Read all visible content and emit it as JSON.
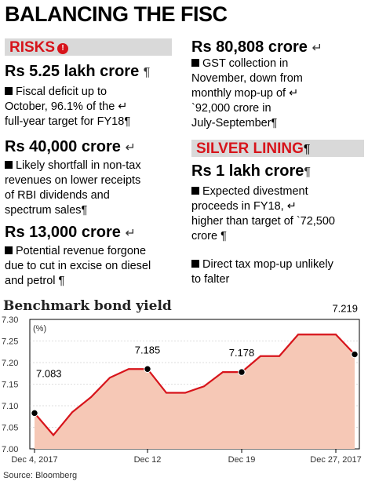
{
  "headline": "BALANCING THE FISC",
  "risks": {
    "label": "RISKS",
    "icon": "exclamation-badge-icon",
    "items": [
      {
        "amount": "Rs 5.25 lakh crore",
        "mark": "¶",
        "lines": [
          "Fiscal deficit up to",
          "October, 96.1% of the ↵",
          "full-year target for FY18¶"
        ]
      },
      {
        "amount": "Rs 40,000 crore",
        "mark": "↵",
        "lines": [
          "Likely shortfall in non-tax",
          "revenues on lower receipts",
          "of RBI dividends and",
          "spectrum sales¶"
        ]
      },
      {
        "amount": "Rs 13,000 crore",
        "mark": "↵",
        "lines": [
          "Potential revenue forgone",
          "due to cut in excise on diesel",
          "and petrol ¶"
        ]
      }
    ]
  },
  "right_top": {
    "amount": "Rs 80,808 crore",
    "mark": "↵",
    "lines": [
      "GST collection in",
      "November, down from",
      "monthly mop-up of ↵",
      "`92,000 crore in",
      "July-September¶"
    ]
  },
  "silver": {
    "label": "SILVER LINING",
    "mark": "¶",
    "items": [
      {
        "amount": "Rs 1 lakh crore",
        "mark": "¶",
        "lines": [
          "Expected divestment",
          "proceeds in FY18, ↵",
          "higher than target of `72,500",
          "crore ¶"
        ]
      },
      {
        "amount": "",
        "mark": "",
        "lines": [
          "Direct tax mop-up unlikely",
          "to falter"
        ]
      }
    ]
  },
  "chart_title": "Benchmark bond yield",
  "source": "Source: Bloomberg",
  "colors": {
    "accent": "#d7141b",
    "band": "#d9d9d9",
    "fill": "#f6c8b6"
  },
  "chart_data": {
    "type": "area",
    "title": "Benchmark bond yield",
    "ylabel": "(%)",
    "ylim": [
      7.0,
      7.3
    ],
    "yticks": [
      "7.30",
      "7.25",
      "7.20",
      "7.15",
      "7.10",
      "7.05",
      "7.00"
    ],
    "xticks": [
      "Dec 4, 2017",
      "Dec 12",
      "Dec 19",
      "Dec 27, 2017"
    ],
    "x": [
      "Dec 4, 2017",
      "Dec 5",
      "Dec 6",
      "Dec 7",
      "Dec 8",
      "Dec 11",
      "Dec 12",
      "Dec 13",
      "Dec 14",
      "Dec 15",
      "Dec 18",
      "Dec 19",
      "Dec 20",
      "Dec 21",
      "Dec 22",
      "Dec 26",
      "Dec 27, 2017",
      "Dec 28"
    ],
    "values": [
      7.083,
      7.032,
      7.085,
      7.12,
      7.165,
      7.185,
      7.185,
      7.13,
      7.13,
      7.145,
      7.178,
      7.178,
      7.215,
      7.215,
      7.265,
      7.265,
      7.265,
      7.219
    ],
    "labels": [
      {
        "index": 0,
        "text": "7.083"
      },
      {
        "index": 6,
        "text": "7.185"
      },
      {
        "index": 11,
        "text": "7.178"
      },
      {
        "index": 17,
        "text": "7.219"
      }
    ],
    "grid": true
  }
}
